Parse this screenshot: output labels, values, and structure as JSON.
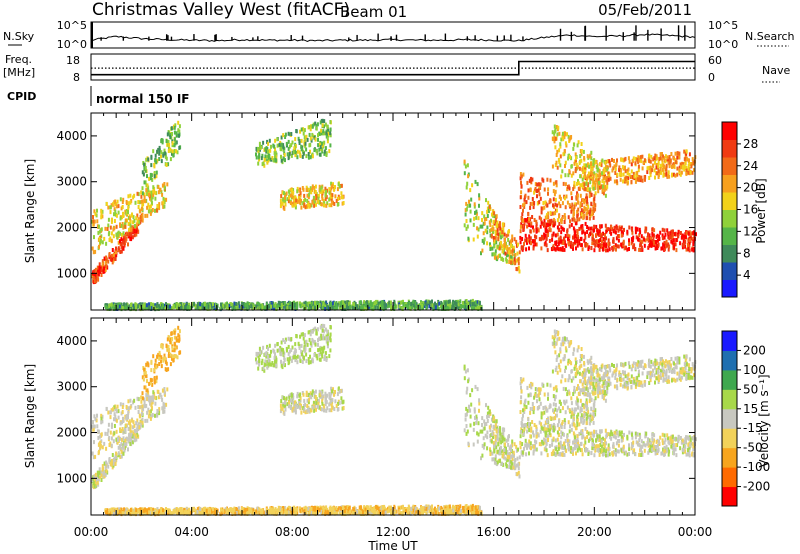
{
  "header": {
    "station": "Christmas Valley West (fitACF)",
    "beam": "Beam 01",
    "date": "05/Feb/2011"
  },
  "colors": {
    "power_scale": [
      "#1a1aff",
      "#1f4fb0",
      "#3f8a5a",
      "#55b548",
      "#8fd13a",
      "#f2d21a",
      "#f7a01e",
      "#f26a18",
      "#f03a12",
      "#ff0000"
    ],
    "velocity_scale": [
      "#ff0000",
      "#ff6a00",
      "#f7a51e",
      "#f2d25a",
      "#c8c8c0",
      "#a8d84a",
      "#3fa84f",
      "#1f6fb0",
      "#1a1aff"
    ]
  },
  "chart_data": [
    {
      "type": "line",
      "name": "noise-panel",
      "left_label": "N.Sky",
      "right_label": "N.Search",
      "left_ticks": [
        "10^5",
        "10^0"
      ],
      "right_ticks": [
        "10^5",
        "10^0"
      ],
      "x": [
        0,
        1,
        2,
        3,
        4,
        5,
        6,
        7,
        8,
        9,
        10,
        11,
        12,
        13,
        14,
        15,
        16,
        17,
        18,
        19,
        20,
        21,
        22,
        23,
        24
      ],
      "series": [
        {
          "values": [
            1.5,
            2.2,
            1.8,
            1.6,
            1.5,
            1.4,
            1.6,
            1.5,
            1.5,
            1.4,
            1.5,
            1.5,
            1.6,
            1.5,
            1.5,
            1.6,
            1.5,
            1.4,
            2.0,
            2.5,
            2.2,
            2.3,
            2.6,
            2.4,
            2.1
          ]
        }
      ]
    },
    {
      "type": "line",
      "name": "frequency-panel",
      "left_label": "Freq.",
      "left_unit": "[MHz]",
      "right_label": "Nave",
      "left_ticks": [
        "18",
        "8"
      ],
      "right_ticks": [
        "60",
        "0"
      ],
      "series": [
        {
          "x": [
            0,
            17,
            17,
            24
          ],
          "values": [
            9.5,
            9.5,
            15.5,
            15.5
          ]
        },
        {
          "x": [
            0,
            24
          ],
          "values": [
            12.5,
            12.5
          ]
        }
      ]
    },
    {
      "type": "table",
      "name": "cpid-panel",
      "label": "CPID",
      "value": "normal 150 IF"
    },
    {
      "type": "heatmap",
      "name": "power-panel",
      "ylabel": "Slant Range [km]",
      "y_ticks": [
        "1000",
        "2000",
        "3000",
        "4000"
      ],
      "ylim": [
        200,
        4500
      ],
      "xlim": [
        0,
        24
      ],
      "colorbar_label": "Power [dB]",
      "colorbar_ticks": [
        "4",
        "8",
        "12",
        "16",
        "20",
        "24",
        "28"
      ],
      "zlim": [
        0,
        30
      ]
    },
    {
      "type": "heatmap",
      "name": "velocity-panel",
      "ylabel": "Slant Range [km]",
      "y_ticks": [
        "1000",
        "2000",
        "3000",
        "4000"
      ],
      "ylim": [
        200,
        4500
      ],
      "xlim": [
        0,
        24
      ],
      "colorbar_label": "Velocity [m s⁻¹]",
      "colorbar_ticks": [
        "-200",
        "-100",
        "-50",
        "-15",
        "15",
        "50",
        "100",
        "200"
      ],
      "zlim": [
        -250,
        250
      ]
    }
  ],
  "x_axis": {
    "label": "Time UT",
    "ticks": [
      "00:00",
      "04:00",
      "08:00",
      "12:00",
      "16:00",
      "20:00",
      "00:00"
    ],
    "tick_hours": [
      0,
      4,
      8,
      12,
      16,
      20,
      24
    ]
  }
}
